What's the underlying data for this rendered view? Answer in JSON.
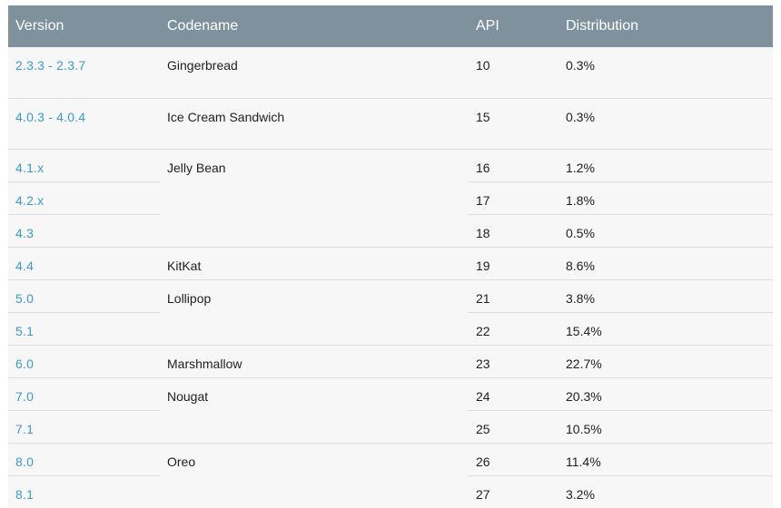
{
  "table": {
    "headers": {
      "version": "Version",
      "codename": "Codename",
      "api": "API",
      "distribution": "Distribution"
    },
    "rows": [
      {
        "version": "2.3.3 - 2.3.7",
        "codename": "Gingerbread",
        "api": "10",
        "distribution": "0.3%"
      },
      {
        "version": "4.0.3 - 4.0.4",
        "codename": "Ice Cream Sandwich",
        "api": "15",
        "distribution": "0.3%"
      },
      {
        "version": "4.1.x",
        "codename": "Jelly Bean",
        "api": "16",
        "distribution": "1.2%"
      },
      {
        "version": "4.2.x",
        "codename": "",
        "api": "17",
        "distribution": "1.8%"
      },
      {
        "version": "4.3",
        "codename": "",
        "api": "18",
        "distribution": "0.5%"
      },
      {
        "version": "4.4",
        "codename": "KitKat",
        "api": "19",
        "distribution": "8.6%"
      },
      {
        "version": "5.0",
        "codename": "Lollipop",
        "api": "21",
        "distribution": "3.8%"
      },
      {
        "version": "5.1",
        "codename": "",
        "api": "22",
        "distribution": "15.4%"
      },
      {
        "version": "6.0",
        "codename": "Marshmallow",
        "api": "23",
        "distribution": "22.7%"
      },
      {
        "version": "7.0",
        "codename": "Nougat",
        "api": "24",
        "distribution": "20.3%"
      },
      {
        "version": "7.1",
        "codename": "",
        "api": "25",
        "distribution": "10.5%"
      },
      {
        "version": "8.0",
        "codename": "Oreo",
        "api": "26",
        "distribution": "11.4%"
      },
      {
        "version": "8.1",
        "codename": "",
        "api": "27",
        "distribution": "3.2%"
      }
    ]
  }
}
